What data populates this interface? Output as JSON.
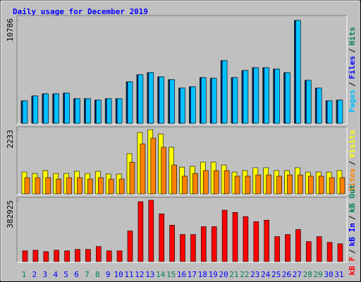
{
  "chart_data": [
    {
      "type": "bar",
      "title": "Daily usage for December 2019",
      "separator": "/",
      "ylim": [
        0,
        10786
      ],
      "yticks": [
        10786
      ],
      "series": [
        {
          "name": "Hits",
          "color": "#00805c",
          "values": [
            2365,
            2880,
            3100,
            3100,
            3180,
            2590,
            2590,
            2440,
            2590,
            2590,
            4360,
            5100,
            5320,
            4880,
            4580,
            3700,
            3840,
            4800,
            4730,
            6580,
            4800,
            5540,
            5840,
            5840,
            5690,
            5320,
            10786,
            4510,
            3700,
            2365,
            2440
          ]
        },
        {
          "name": "Files",
          "color": "#0000ff",
          "values": [
            2365,
            2880,
            3100,
            3100,
            3180,
            2590,
            2590,
            2440,
            2590,
            2590,
            4360,
            5100,
            5320,
            4880,
            4580,
            3700,
            3840,
            4800,
            4730,
            6580,
            4800,
            5540,
            5840,
            5840,
            5690,
            5320,
            10786,
            4510,
            3700,
            2365,
            2440
          ]
        },
        {
          "name": "Pages",
          "color": "#00c0ff",
          "values": [
            2365,
            2880,
            3100,
            3100,
            3180,
            2590,
            2590,
            2440,
            2590,
            2590,
            4360,
            5100,
            5320,
            4880,
            4580,
            3700,
            3840,
            4800,
            4730,
            6580,
            4800,
            5540,
            5840,
            5840,
            5690,
            5320,
            10786,
            4510,
            3700,
            2365,
            2440
          ]
        }
      ]
    },
    {
      "type": "bar",
      "ylim": [
        0,
        2233
      ],
      "yticks": [
        2233
      ],
      "series": [
        {
          "name": "Visits",
          "color": "#ffff00",
          "values": [
            760,
            710,
            810,
            710,
            710,
            785,
            710,
            785,
            690,
            690,
            1400,
            2135,
            2233,
            2085,
            1620,
            930,
            960,
            1105,
            1105,
            1005,
            760,
            810,
            910,
            910,
            810,
            810,
            910,
            760,
            760,
            760,
            810
          ]
        },
        {
          "name": "Sites",
          "color": "#ff8000",
          "values": [
            565,
            565,
            565,
            515,
            565,
            565,
            515,
            565,
            515,
            515,
            1100,
            1740,
            1940,
            1620,
            1005,
            615,
            710,
            810,
            810,
            810,
            615,
            615,
            660,
            660,
            615,
            660,
            660,
            615,
            615,
            565,
            565
          ]
        }
      ]
    },
    {
      "type": "bar",
      "ylim": [
        0,
        382925
      ],
      "yticks": [
        382925
      ],
      "categories": [
        "1",
        "2",
        "3",
        "4",
        "5",
        "6",
        "7",
        "8",
        "9",
        "10",
        "11",
        "12",
        "13",
        "14",
        "15",
        "16",
        "17",
        "18",
        "19",
        "20",
        "21",
        "22",
        "23",
        "24",
        "25",
        "26",
        "27",
        "28",
        "29",
        "30",
        "31"
      ],
      "category_colors": [
        "#00805c",
        "#0000ff",
        "#0000ff",
        "#0000ff",
        "#0000ff",
        "#0000ff",
        "#00805c",
        "#00805c",
        "#0000ff",
        "#0000ff",
        "#0000ff",
        "#0000ff",
        "#0000ff",
        "#00805c",
        "#00805c",
        "#0000ff",
        "#0000ff",
        "#0000ff",
        "#0000ff",
        "#0000ff",
        "#00805c",
        "#00805c",
        "#0000ff",
        "#0000ff",
        "#0000ff",
        "#0000ff",
        "#0000ff",
        "#00805c",
        "#00805c",
        "#0000ff",
        "#0000ff"
      ],
      "series": [
        {
          "name": "kB Out",
          "color": "#00805c",
          "values": [
            0,
            0,
            0,
            0,
            0,
            0,
            0,
            0,
            0,
            0,
            0,
            0,
            0,
            0,
            0,
            0,
            0,
            0,
            0,
            0,
            0,
            0,
            0,
            0,
            0,
            0,
            0,
            0,
            0,
            0,
            0
          ]
        },
        {
          "name": "kB In",
          "color": "#0000ff",
          "values": [
            0,
            0,
            0,
            0,
            0,
            0,
            0,
            0,
            0,
            0,
            0,
            0,
            0,
            0,
            0,
            0,
            0,
            0,
            0,
            0,
            0,
            0,
            0,
            0,
            0,
            0,
            0,
            0,
            0,
            0,
            0
          ]
        },
        {
          "name": "kB F",
          "color": "#ff0000",
          "values": [
            67000,
            71000,
            62000,
            71000,
            67000,
            76000,
            76000,
            94000,
            67000,
            67000,
            191000,
            374000,
            382925,
            298000,
            227000,
            169000,
            169000,
            218000,
            218000,
            321000,
            307000,
            281000,
            249000,
            258000,
            156000,
            169000,
            200000,
            125000,
            156000,
            120000,
            111000
          ]
        }
      ]
    }
  ]
}
